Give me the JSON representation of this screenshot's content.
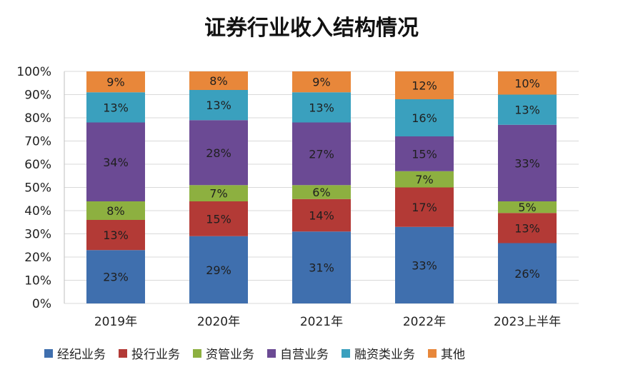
{
  "chart_data": {
    "type": "bar",
    "stacked": true,
    "title": "证券行业收入结构情况",
    "categories": [
      "2019年",
      "2020年",
      "2021年",
      "2022年",
      "2023上半年"
    ],
    "ylim": [
      0,
      100
    ],
    "y_ticks": [
      "0%",
      "10%",
      "20%",
      "30%",
      "40%",
      "50%",
      "60%",
      "70%",
      "80%",
      "90%",
      "100%"
    ],
    "grid": true,
    "legend_position": "bottom",
    "series": [
      {
        "name": "经纪业务",
        "color": "#3f6fae",
        "values": [
          23,
          29,
          31,
          33,
          26
        ],
        "labels": [
          "23%",
          "29%",
          "31%",
          "33%",
          "26%"
        ]
      },
      {
        "name": "投行业务",
        "color": "#b33a36",
        "values": [
          13,
          15,
          14,
          17,
          13
        ],
        "labels": [
          "13%",
          "15%",
          "14%",
          "17%",
          "13%"
        ]
      },
      {
        "name": "资管业务",
        "color": "#8db040",
        "values": [
          8,
          7,
          6,
          7,
          5
        ],
        "labels": [
          "8%",
          "7%",
          "6%",
          "7%",
          "5%"
        ]
      },
      {
        "name": "自营业务",
        "color": "#6b4a94",
        "values": [
          34,
          28,
          27,
          15,
          33
        ],
        "labels": [
          "34%",
          "28%",
          "27%",
          "15%",
          "33%"
        ]
      },
      {
        "name": "融资类业务",
        "color": "#3aa0be",
        "values": [
          13,
          13,
          13,
          16,
          13
        ],
        "labels": [
          "13%",
          "13%",
          "13%",
          "16%",
          "13%"
        ]
      },
      {
        "name": "其他",
        "color": "#e8873a",
        "values": [
          9,
          8,
          9,
          12,
          10
        ],
        "labels": [
          "9%",
          "8%",
          "9%",
          "12%",
          "10%"
        ]
      }
    ]
  }
}
